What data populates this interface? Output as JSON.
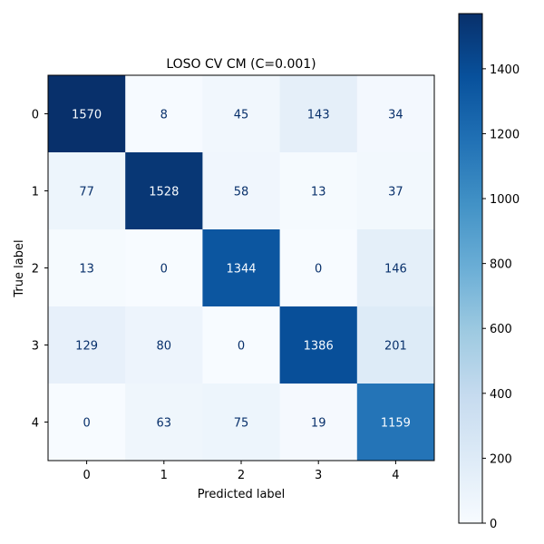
{
  "chart_data": {
    "type": "heatmap",
    "title": "LOSO CV CM (C=0.001)",
    "xlabel": "Predicted label",
    "ylabel": "True label",
    "x_categories": [
      "0",
      "1",
      "2",
      "3",
      "4"
    ],
    "y_categories": [
      "0",
      "1",
      "2",
      "3",
      "4"
    ],
    "values": [
      [
        1570,
        8,
        45,
        143,
        34
      ],
      [
        77,
        1528,
        58,
        13,
        37
      ],
      [
        13,
        0,
        1344,
        0,
        146
      ],
      [
        129,
        80,
        0,
        1386,
        201
      ],
      [
        0,
        63,
        75,
        19,
        1159
      ]
    ],
    "colormap": "Blues",
    "vmin": 0,
    "vmax": 1570,
    "colorbar_ticks": [
      0,
      200,
      400,
      600,
      800,
      1000,
      1200,
      1400
    ],
    "colorbar_labels": [
      "0",
      "200",
      "400",
      "600",
      "800",
      "1000",
      "1200",
      "1400"
    ],
    "grid": false,
    "colorbar_position": "right"
  }
}
